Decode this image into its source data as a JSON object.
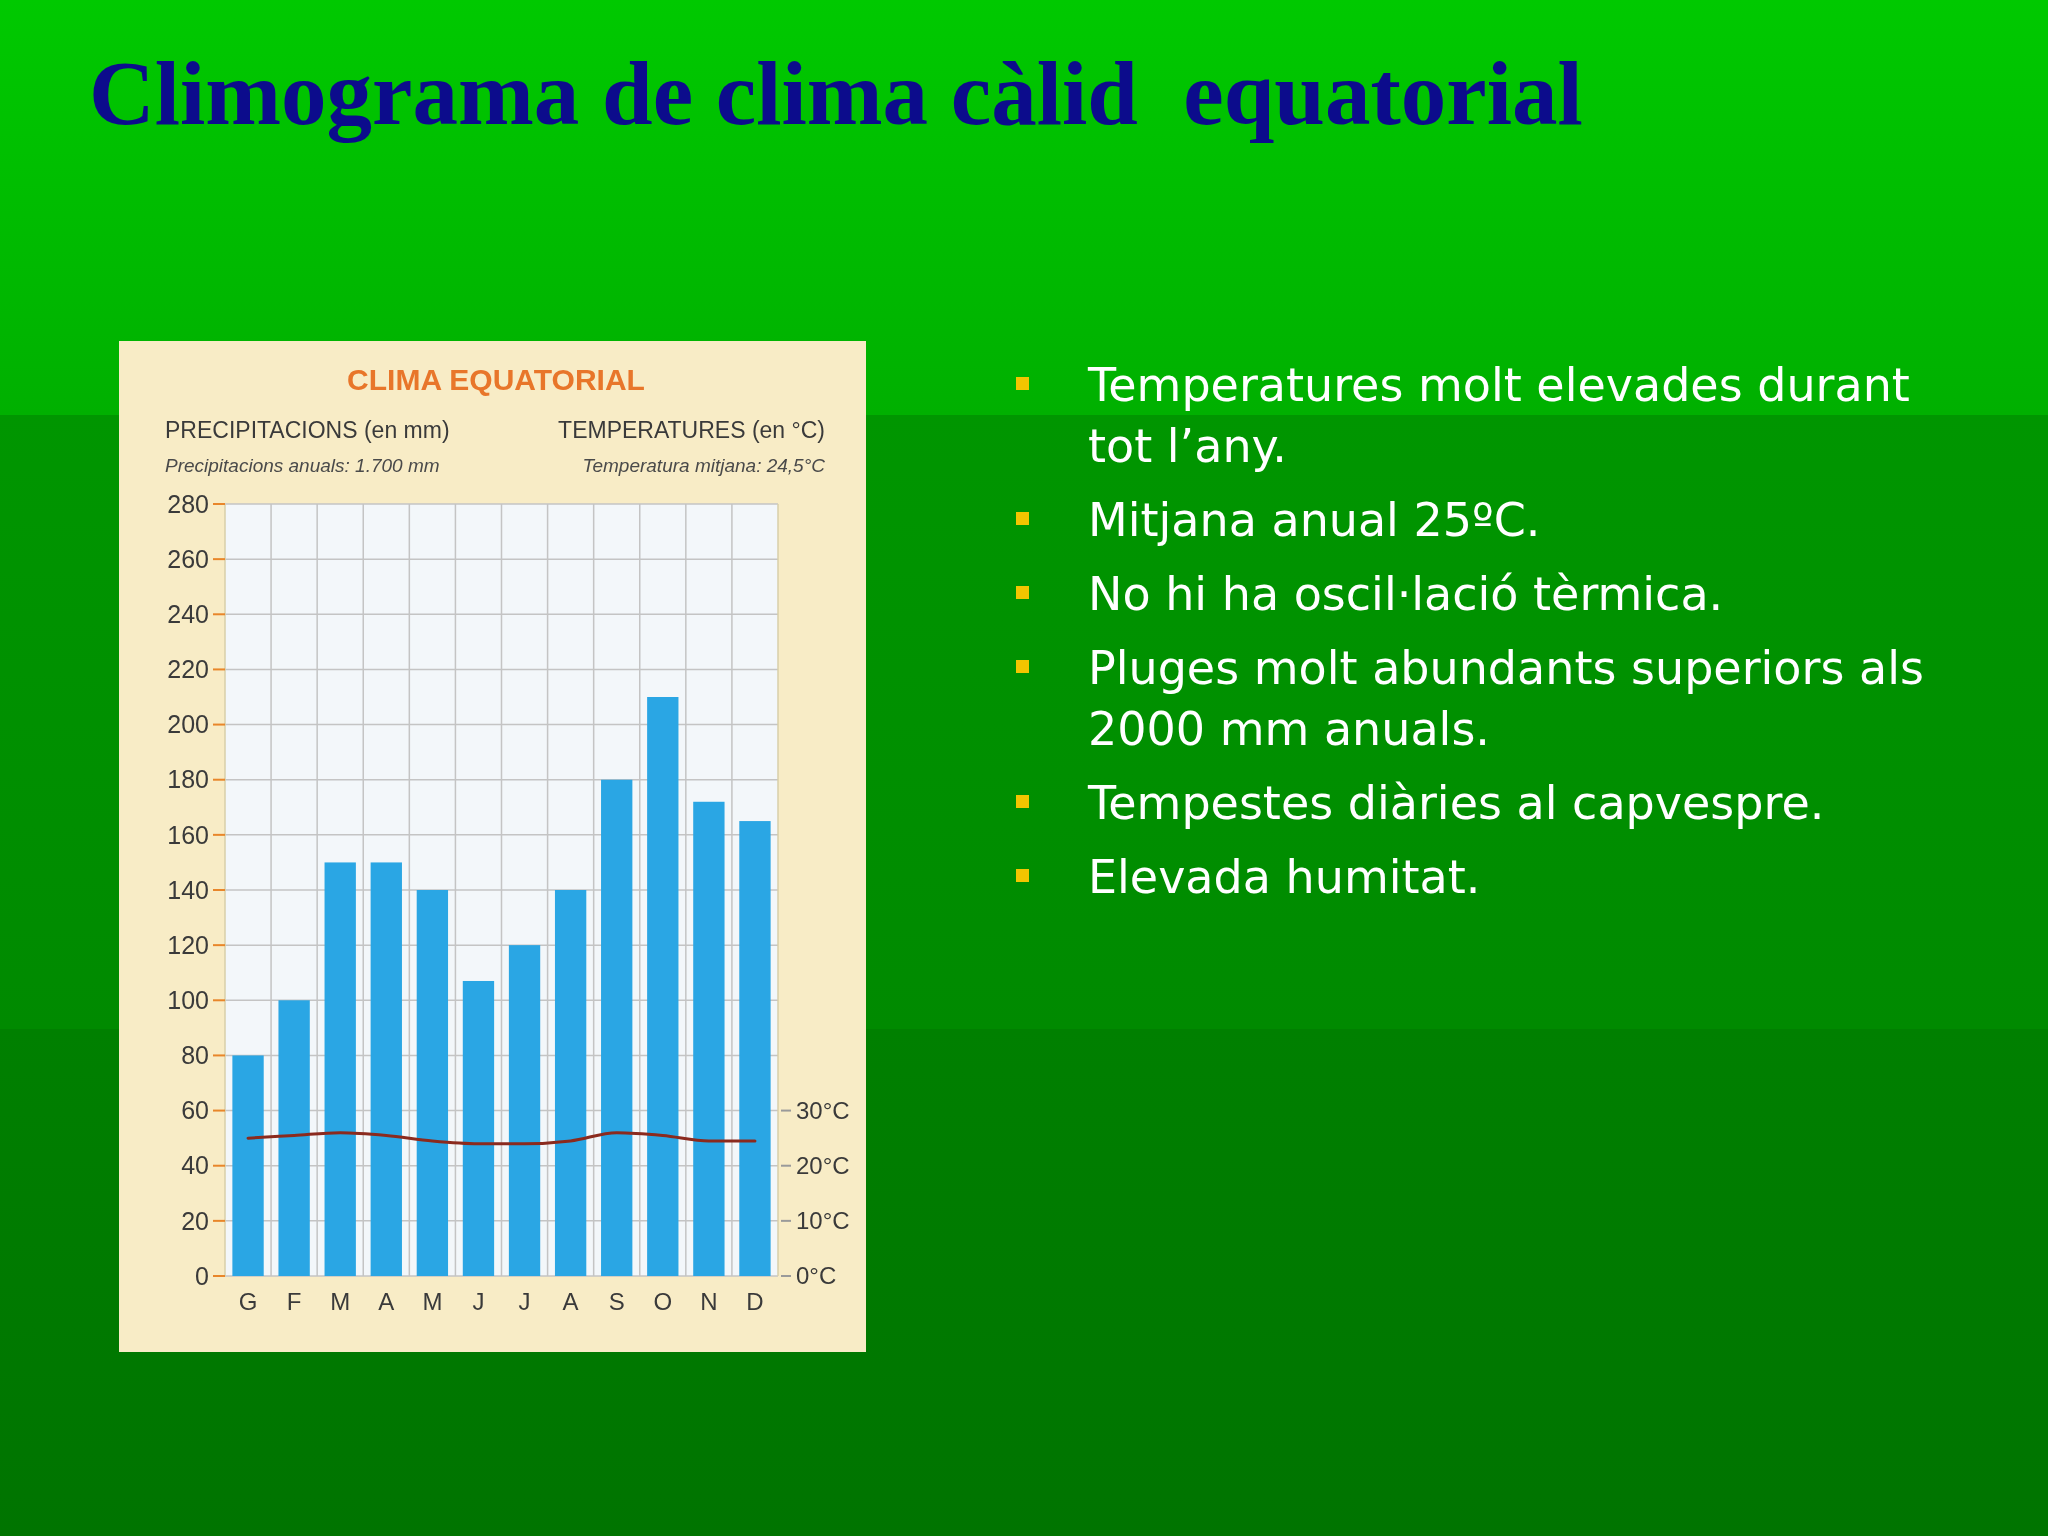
{
  "chart_data": [
    {
      "type": "other",
      "title": "Climograma de clima càlid  equatorial",
      "annotations": [
        "Temperatures molt elevades durant tot l’any.",
        "Mitjana anual 25ºC.",
        "No hi ha oscil·lació tèrmica.",
        "Pluges molt abundants superiors als 2000 mm anuals.",
        "Tempestes diàries al capvespre.",
        "Elevada humitat."
      ]
    },
    {
      "type": "bar",
      "title": "CLIMA EQUATORIAL",
      "ylabel": "PRECIPITACIONS (en mm)",
      "y2label": "TEMPERATURES (en °C)",
      "annotations": [
        "Precipitacions anuals: 1.700 mm",
        "Temperatura mitjana: 24,5°C"
      ],
      "categories": [
        "G",
        "F",
        "M",
        "A",
        "M",
        "J",
        "J",
        "A",
        "S",
        "O",
        "N",
        "D"
      ],
      "series": [
        {
          "color": "#2aa6e4",
          "values": [
            80,
            100,
            150,
            150,
            140,
            107,
            120,
            140,
            180,
            210,
            172,
            165
          ]
        },
        {
          "type": "line",
          "axis": "y2",
          "color": "#8b2a1e",
          "values": [
            25,
            25.5,
            26,
            25.5,
            24.5,
            24,
            24,
            24.5,
            26,
            25.5,
            24.5,
            24.5
          ]
        }
      ],
      "ylim": [
        0,
        280
      ],
      "yticks": [
        0,
        20,
        40,
        60,
        80,
        100,
        120,
        140,
        160,
        180,
        200,
        220,
        240,
        260,
        280
      ],
      "y2lim": [
        0,
        140
      ],
      "y2ticks": [
        {
          "value": 0,
          "label": "0°C"
        },
        {
          "value": 10,
          "label": "10°C"
        },
        {
          "value": 20,
          "label": "20°C"
        },
        {
          "value": 30,
          "label": "30°C"
        }
      ],
      "grid": true
    }
  ]
}
